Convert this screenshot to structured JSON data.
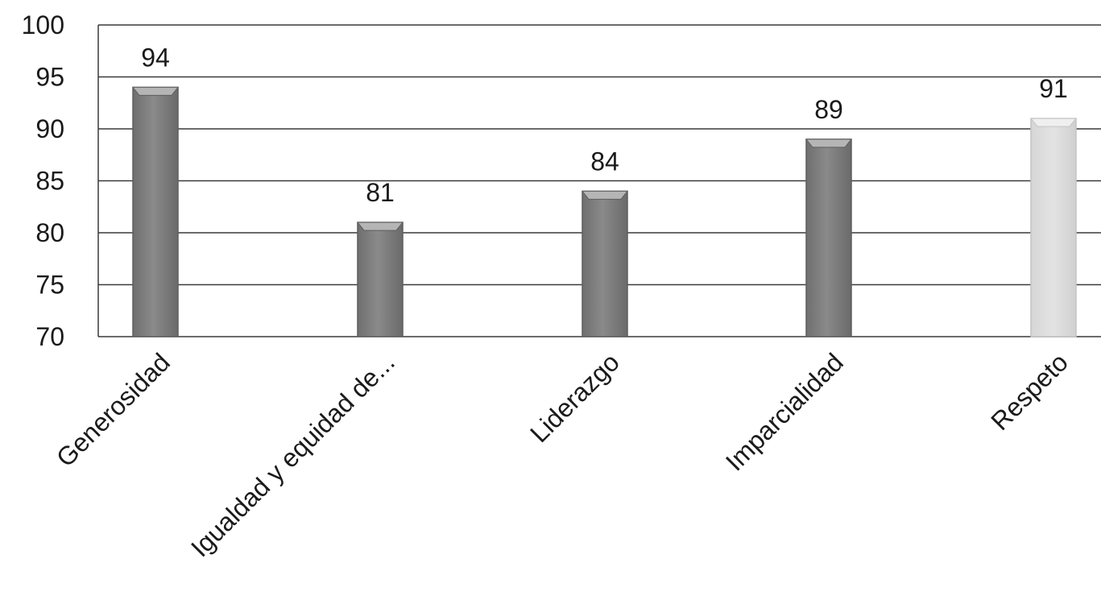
{
  "chart_data": {
    "type": "bar",
    "title": "",
    "xlabel": "",
    "ylabel": "",
    "categories": [
      "Generosidad",
      "Igualdad y equidad de...",
      "Liderazgo",
      "Imparcialidad",
      "Respeto"
    ],
    "values": [
      94,
      81,
      84,
      89,
      91
    ],
    "data_labels": [
      "94",
      "81",
      "84",
      "89",
      "91"
    ],
    "y_ticks": [
      "70",
      "75",
      "80",
      "85",
      "90",
      "95",
      "100"
    ],
    "ylim": [
      70,
      100
    ],
    "grid": true,
    "legend": "none",
    "colors": {
      "bar": "#8a8a8a",
      "bar_edge": "#5e5e5e",
      "bar_top": "#b5b5b5",
      "bar_highlight": "#e3e3e3",
      "bar_highlight_edge": "#c4c4c4",
      "grid": "#3a3a3a",
      "text": "#1a1a1a"
    },
    "highlighted_index": 4
  }
}
